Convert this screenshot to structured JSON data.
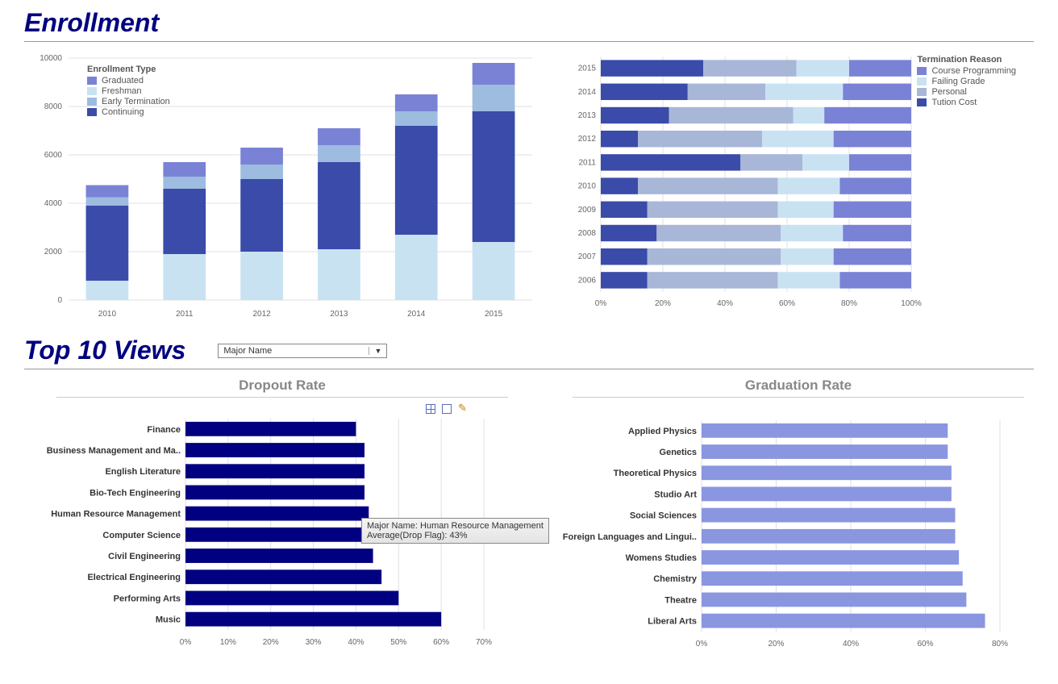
{
  "titles": {
    "enrollment": "Enrollment",
    "top10": "Top 10 Views",
    "dropout": "Dropout Rate",
    "graduation": "Graduation Rate"
  },
  "dropdown": {
    "label": "Major Name"
  },
  "colors": {
    "dark_navy": "#000080",
    "enroll_continuing": "#3b4ba9",
    "enroll_freshman": "#c8e2f2",
    "enroll_early": "#9dbce0",
    "enroll_graduated": "#7a82d6",
    "term_tuition": "#3b4ba9",
    "term_personal": "#a8b6d8",
    "term_failing": "#c8e2f2",
    "term_course": "#7a82d6",
    "dropout_bar": "#000080",
    "grad_bar": "#8a96e0",
    "grid": "#e0e0e0",
    "axis_text": "#666666"
  },
  "enrollment_chart": {
    "type": "stacked-bar-vertical",
    "legend_title": "Enrollment Type",
    "legend": [
      "Graduated",
      "Freshman",
      "Early Termination",
      "Continuing"
    ],
    "legend_colors": [
      "#7a82d6",
      "#c8e2f2",
      "#9dbce0",
      "#3b4ba9"
    ],
    "y_max": 10000,
    "y_step": 2000,
    "categories": [
      "2010",
      "2011",
      "2012",
      "2013",
      "2014",
      "2015"
    ],
    "series": {
      "Freshman": [
        800,
        1900,
        2000,
        2100,
        2700,
        2400
      ],
      "Continuing": [
        3100,
        2700,
        3000,
        3600,
        4500,
        5400
      ],
      "Early Termination": [
        350,
        500,
        600,
        700,
        600,
        1100
      ],
      "Graduated": [
        500,
        600,
        700,
        700,
        700,
        900
      ]
    },
    "stack_order": [
      "Freshman",
      "Continuing",
      "Early Termination",
      "Graduated"
    ],
    "stack_colors": [
      "#c8e2f2",
      "#3b4ba9",
      "#9dbce0",
      "#7a82d6"
    ],
    "bar_width": 0.55
  },
  "termination_chart": {
    "type": "stacked-bar-horizontal-100",
    "legend_title": "Termination Reason",
    "legend": [
      "Course Programming",
      "Failing Grade",
      "Personal",
      "Tution Cost"
    ],
    "legend_colors": [
      "#7a82d6",
      "#c8e2f2",
      "#a8b6d8",
      "#3b4ba9"
    ],
    "x_ticks": [
      "0%",
      "20%",
      "40%",
      "60%",
      "80%",
      "100%"
    ],
    "categories": [
      "2015",
      "2014",
      "2013",
      "2012",
      "2011",
      "2010",
      "2009",
      "2008",
      "2007",
      "2006"
    ],
    "stack_order": [
      "Tution Cost",
      "Personal",
      "Failing Grade",
      "Course Programming"
    ],
    "stack_colors": [
      "#3b4ba9",
      "#a8b6d8",
      "#c8e2f2",
      "#7a82d6"
    ],
    "values": {
      "2015": [
        33,
        30,
        17,
        20
      ],
      "2014": [
        28,
        25,
        25,
        22
      ],
      "2013": [
        22,
        40,
        10,
        28
      ],
      "2012": [
        12,
        40,
        23,
        25
      ],
      "2011": [
        45,
        20,
        15,
        20
      ],
      "2010": [
        12,
        45,
        20,
        23
      ],
      "2009": [
        15,
        42,
        18,
        25
      ],
      "2008": [
        18,
        40,
        20,
        22
      ],
      "2007": [
        15,
        43,
        17,
        25
      ],
      "2006": [
        15,
        42,
        20,
        23
      ]
    }
  },
  "dropout_chart": {
    "type": "bar-horizontal",
    "x_ticks": [
      "0%",
      "10%",
      "20%",
      "30%",
      "40%",
      "50%",
      "60%",
      "70%"
    ],
    "x_max": 70,
    "items": [
      {
        "label": "Finance",
        "value": 40
      },
      {
        "label": "Business Management and Ma..",
        "value": 42
      },
      {
        "label": "English Literature",
        "value": 42
      },
      {
        "label": "Bio-Tech Engineering",
        "value": 42
      },
      {
        "label": "Human Resource Management",
        "value": 43
      },
      {
        "label": "Computer Science",
        "value": 43
      },
      {
        "label": "Civil Engineering",
        "value": 44
      },
      {
        "label": "Electrical Engineering",
        "value": 46
      },
      {
        "label": "Performing Arts",
        "value": 50
      },
      {
        "label": "Music",
        "value": 60
      }
    ],
    "tooltip": {
      "line1": "Major Name: Human Resource Management",
      "line2": "Average(Drop Flag): 43%"
    }
  },
  "graduation_chart": {
    "type": "bar-horizontal",
    "x_ticks": [
      "0%",
      "20%",
      "40%",
      "60%",
      "80%"
    ],
    "x_max": 80,
    "items": [
      {
        "label": "Applied Physics",
        "value": 66
      },
      {
        "label": "Genetics",
        "value": 66
      },
      {
        "label": "Theoretical Physics",
        "value": 67
      },
      {
        "label": "Studio Art",
        "value": 67
      },
      {
        "label": "Social Sciences",
        "value": 68
      },
      {
        "label": "Foreign Languages and Lingui..",
        "value": 68
      },
      {
        "label": "Womens Studies",
        "value": 69
      },
      {
        "label": "Chemistry",
        "value": 70
      },
      {
        "label": "Theatre",
        "value": 71
      },
      {
        "label": "Liberal Arts",
        "value": 76
      }
    ]
  }
}
